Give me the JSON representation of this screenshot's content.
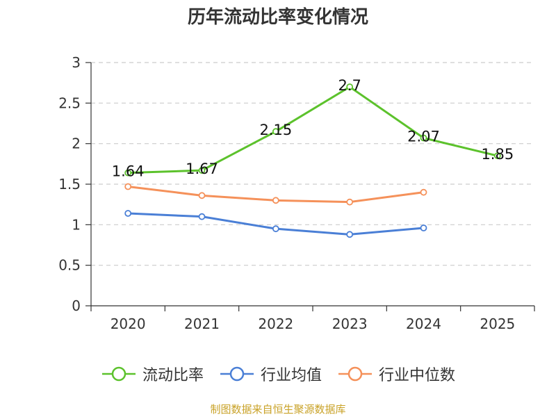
{
  "chart_data": {
    "type": "line",
    "title": "历年流动比率变化情况",
    "categories": [
      "2020",
      "2021",
      "2022",
      "2023",
      "2024",
      "2025"
    ],
    "ylim": [
      0,
      3
    ],
    "yticks": [
      "0",
      "0.5",
      "1",
      "1.5",
      "2",
      "2.5",
      "3"
    ],
    "ytick_values": [
      0,
      0.5,
      1,
      1.5,
      2,
      2.5,
      3
    ],
    "grid": true,
    "legend_position": "bottom",
    "series": [
      {
        "name": "流动比率",
        "color": "#5cc22c",
        "values": [
          1.64,
          1.67,
          2.15,
          2.7,
          2.07,
          1.85
        ],
        "labels": [
          "1.64",
          "1.67",
          "2.15",
          "2.7",
          "2.07",
          "1.85"
        ]
      },
      {
        "name": "行业均值",
        "color": "#4a7fd6",
        "values": [
          1.14,
          1.1,
          0.95,
          0.88,
          0.96,
          null
        ]
      },
      {
        "name": "行业中位数",
        "color": "#f5915a",
        "values": [
          1.47,
          1.36,
          1.3,
          1.28,
          1.4,
          null
        ]
      }
    ]
  },
  "source": "制图数据来自恒生聚源数据库"
}
